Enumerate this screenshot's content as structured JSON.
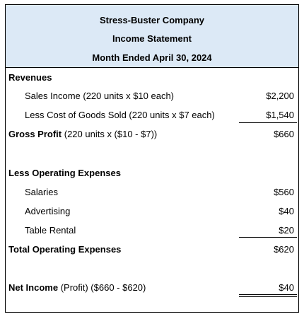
{
  "header": {
    "company": "Stress-Buster Company",
    "statement": "Income Statement",
    "period": "Month Ended April 30, 2024"
  },
  "revenues": {
    "heading": "Revenues",
    "sales": {
      "label": "Sales Income (220 units x $10 each)",
      "amount": "$2,200"
    },
    "cogs": {
      "label": "Less Cost of Goods Sold (220 units x $7 each)",
      "amount": "$1,540"
    },
    "gross_profit": {
      "label": "Gross Profit",
      "label_detail": " (220 units x ($10 - $7))",
      "amount": "$660"
    }
  },
  "operating_expenses": {
    "heading": "Less Operating Expenses",
    "items": [
      {
        "label": "Salaries",
        "amount": "$560"
      },
      {
        "label": "Advertising",
        "amount": "$40"
      },
      {
        "label": "Table Rental",
        "amount": "$20"
      }
    ],
    "total": {
      "label": "Total Operating  Expenses",
      "amount": "$620"
    }
  },
  "net_income": {
    "label": "Net Income",
    "label_detail": " (Profit) ($660 - $620)",
    "amount": "$40"
  }
}
